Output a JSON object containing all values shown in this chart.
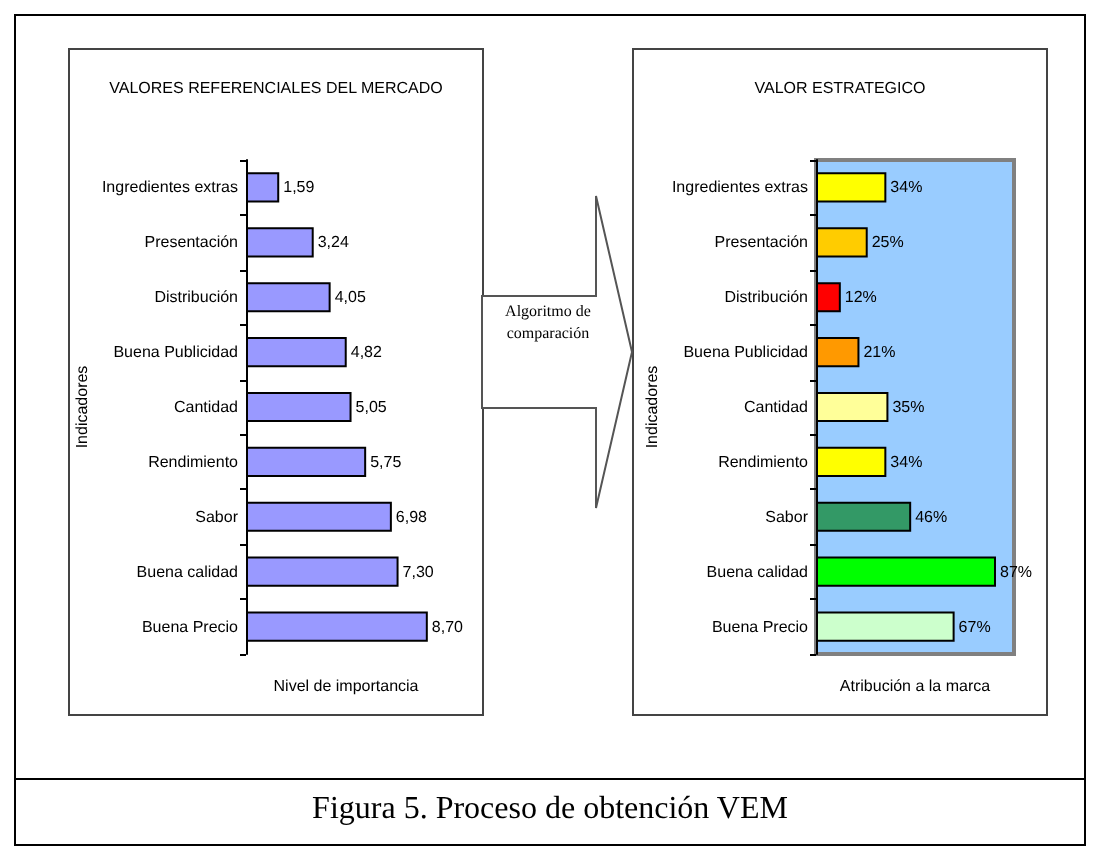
{
  "chart_data": [
    {
      "type": "bar",
      "orientation": "horizontal",
      "title": "VALORES REFERENCIALES DEL MERCADO",
      "xlabel": "Nivel de importancia",
      "ylabel": "Indicadores",
      "tick_labels": "y",
      "categories": [
        "Ingredientes extras",
        "Presentación",
        "Distribución",
        "Buena Publicidad",
        "Cantidad",
        "Rendimiento",
        "Sabor",
        "Buena calidad",
        "Buena Precio"
      ],
      "values": [
        1.59,
        3.24,
        4.05,
        4.82,
        5.05,
        5.75,
        6.98,
        7.3,
        8.7
      ],
      "color": "#9999ff",
      "value_labels": [
        "1,59",
        "3,24",
        "4,05",
        "4,82",
        "5,05",
        "5,75",
        "6,98",
        "7,30",
        "8,70"
      ],
      "annotations": [
        "Algoritmo de comparación",
        "Figura 5. Proceso de obtención VEM"
      ]
    },
    {
      "type": "bar",
      "orientation": "horizontal",
      "title": "VALOR ESTRATEGICO",
      "xlabel": "Atribución a la marca",
      "ylabel": "Indicadores",
      "tick_labels": "y",
      "categories": [
        "Ingredientes extras",
        "Presentación",
        "Distribución",
        "Buena Publicidad",
        "Cantidad",
        "Rendimiento",
        "Sabor",
        "Buena calidad",
        "Buena Precio"
      ],
      "values": [
        34,
        25,
        12,
        21,
        35,
        34,
        46,
        87,
        67
      ],
      "colors": [
        "#ffff00",
        "#ffcc00",
        "#ff0000",
        "#ff9900",
        "#ffff99",
        "#ffff00",
        "#339966",
        "#00ff00",
        "#ccffcc"
      ],
      "value_labels": [
        "34%",
        "25%",
        "12%",
        "21%",
        "35%",
        "34%",
        "46%",
        "87%",
        "67%"
      ]
    }
  ]
}
